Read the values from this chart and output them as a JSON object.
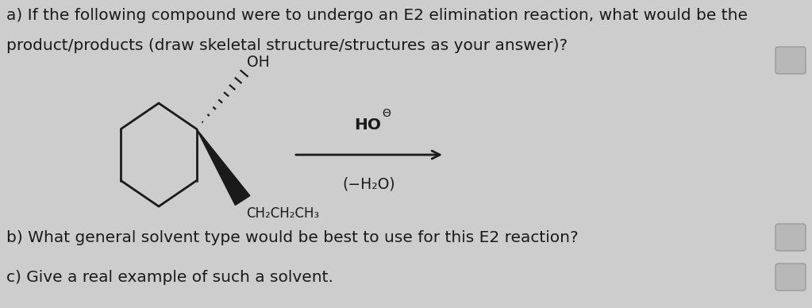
{
  "bg_color": "#cdcdcd",
  "text_color": "#1a1a1a",
  "line_color": "#1a1a1a",
  "question_a": "a) If the following compound were to undergo an E2 elimination reaction, what would be the",
  "question_a2": "product/products (draw skeletal structure/structures as your answer)?",
  "question_b": "b) What general solvent type would be best to use for this E2 reaction?",
  "question_c": "c) Give a real example of such a solvent.",
  "oh_label": "OH",
  "substituent_label": "CH₂CH₂CH₃",
  "reagent_above": "HO",
  "reagent_circle_minus": "⊖",
  "reagent_below": "(−H₂O)",
  "font_size_q": 14.5,
  "font_size_chem": 13.5,
  "font_size_sub": 12.0
}
